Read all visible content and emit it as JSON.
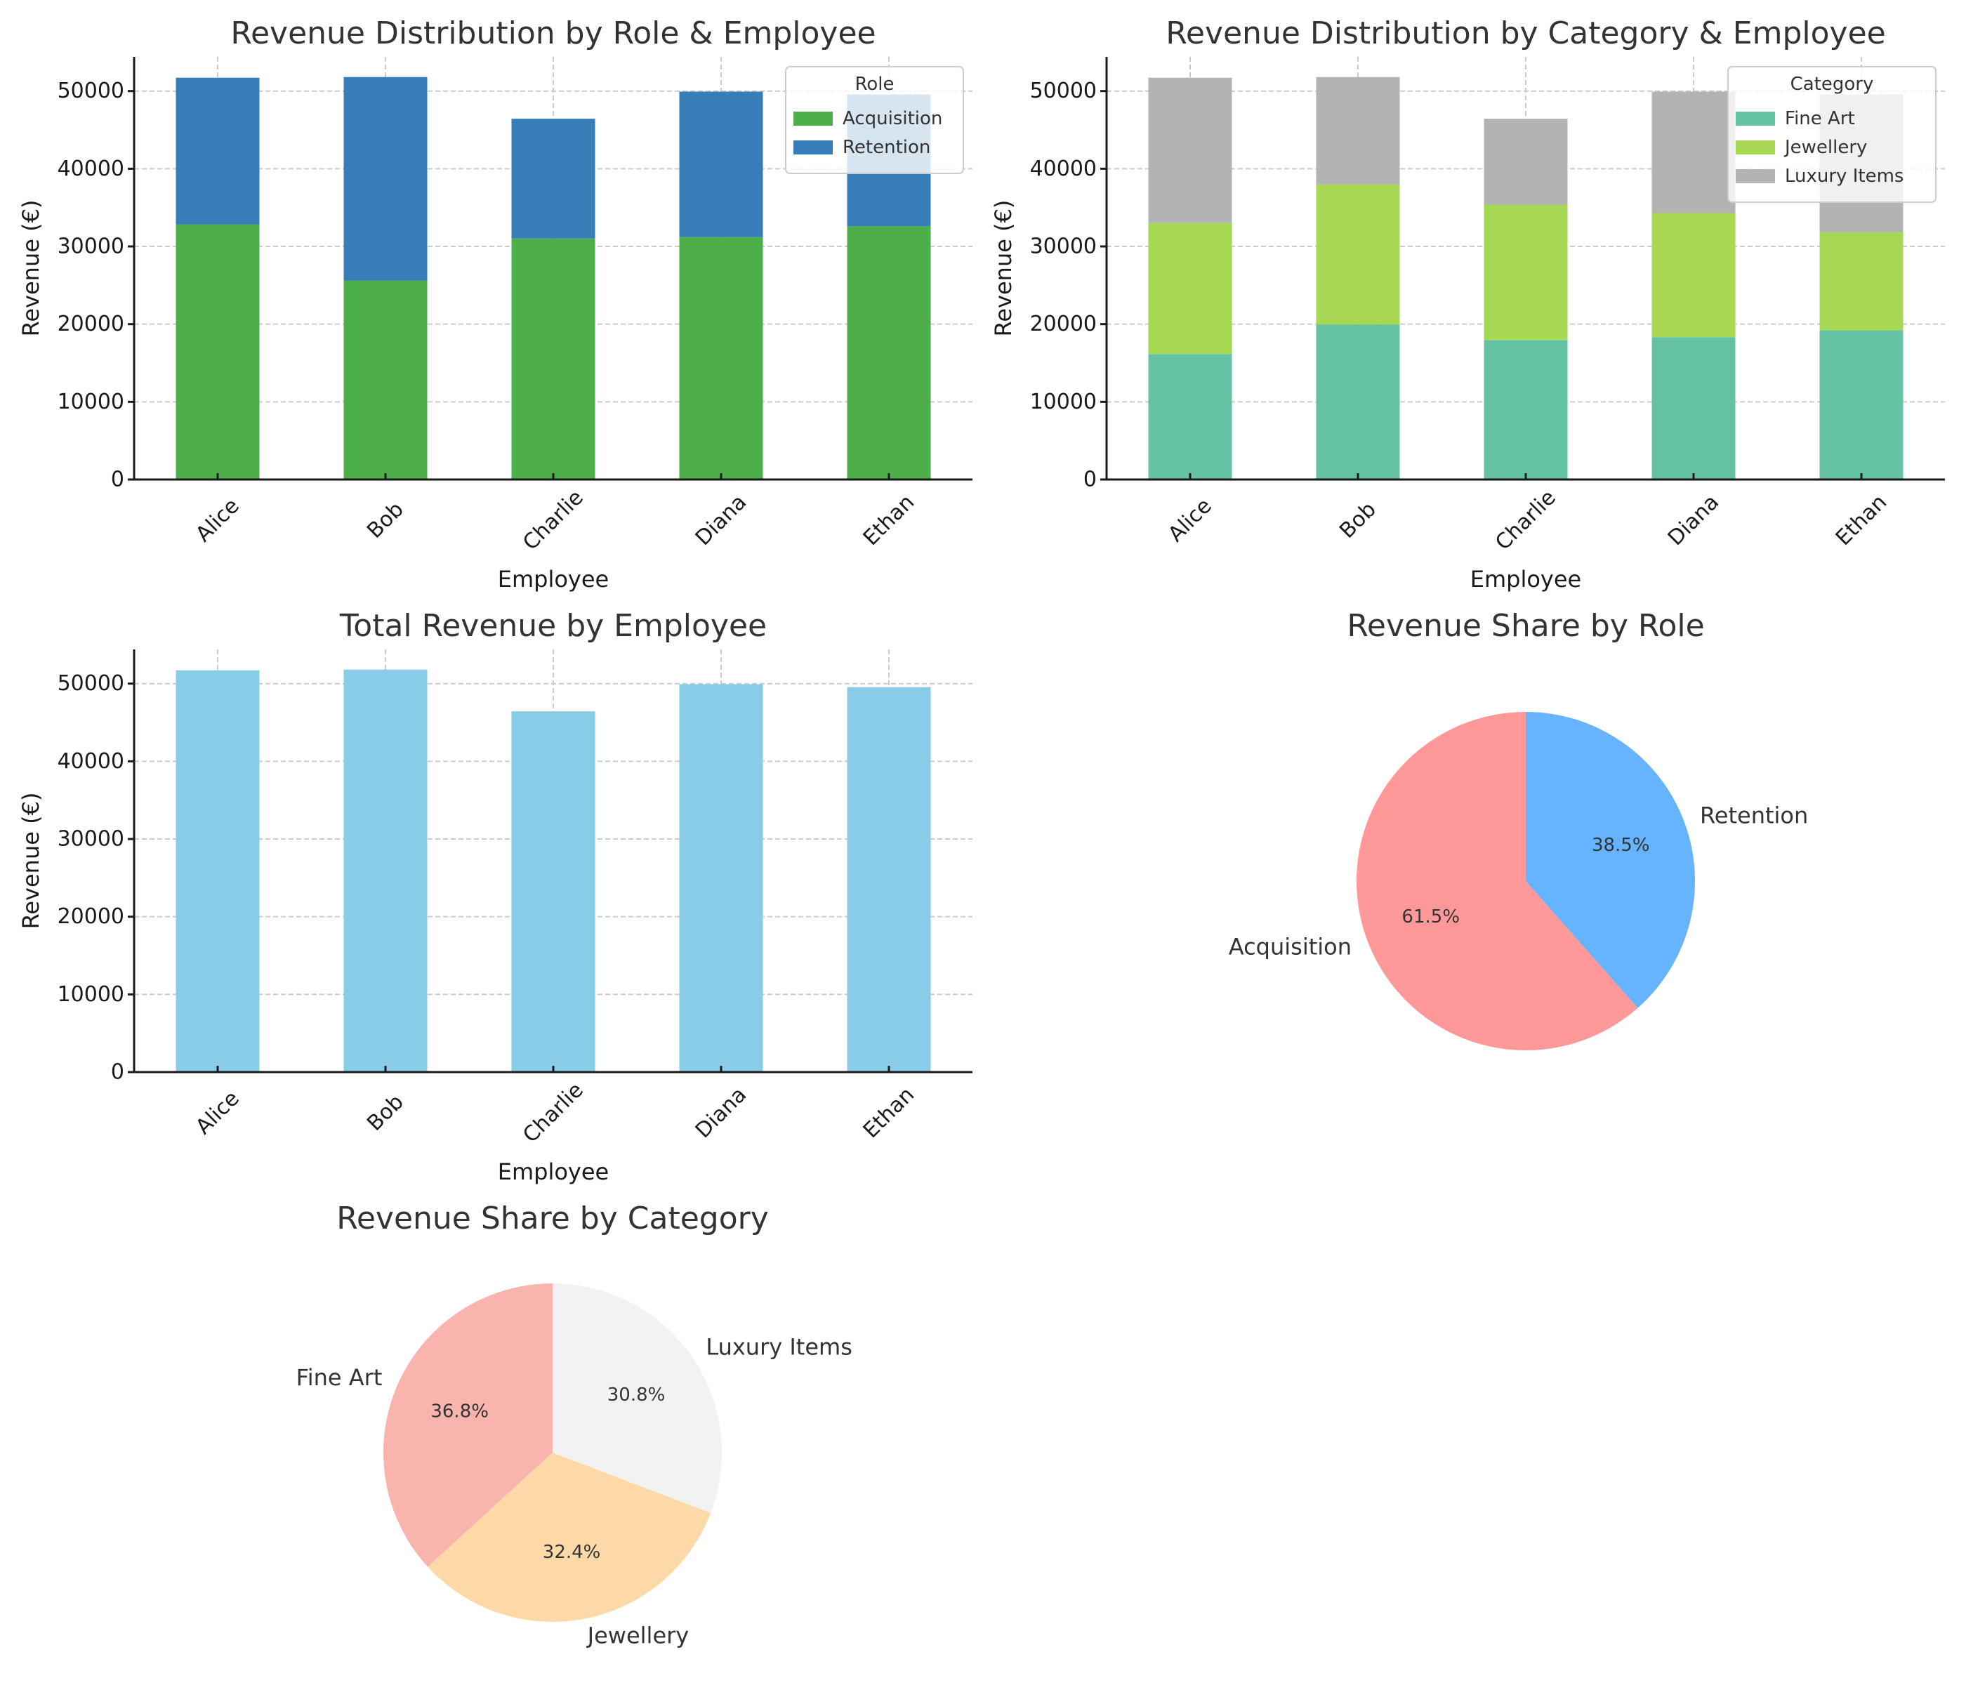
{
  "chart_data": [
    {
      "id": "role_stacked",
      "type": "bar",
      "stacked": true,
      "title": "Revenue Distribution by Role & Employee",
      "xlabel": "Employee",
      "ylabel": "Revenue (€)",
      "categories": [
        "Alice",
        "Bob",
        "Charlie",
        "Diana",
        "Ethan"
      ],
      "series": [
        {
          "name": "Acquisition",
          "color": "#4daf4a",
          "values": [
            32850,
            25620,
            31030,
            31210,
            32600
          ]
        },
        {
          "name": "Retention",
          "color": "#377eb8",
          "values": [
            18865,
            26185,
            15405,
            18718,
            16949
          ]
        }
      ],
      "ylim": [
        0,
        54400
      ],
      "yticks": [
        0,
        10000,
        20000,
        30000,
        40000,
        50000
      ],
      "grid": true,
      "legend": {
        "title": "Role",
        "position": "top-right"
      }
    },
    {
      "id": "category_stacked",
      "type": "bar",
      "stacked": true,
      "title": "Revenue Distribution by Category & Employee",
      "xlabel": "Employee",
      "ylabel": "Revenue (€)",
      "categories": [
        "Alice",
        "Bob",
        "Charlie",
        "Diana",
        "Ethan"
      ],
      "series": [
        {
          "name": "Fine Art",
          "color": "#66c2a5",
          "values": [
            16150,
            19960,
            17960,
            18320,
            19200
          ]
        },
        {
          "name": "Jewellery",
          "color": "#a6d854",
          "values": [
            16870,
            18030,
            17420,
            15970,
            12620
          ]
        },
        {
          "name": "Luxury Items",
          "color": "#b3b3b3",
          "values": [
            18695,
            13815,
            11055,
            15638,
            17729
          ]
        }
      ],
      "ylim": [
        0,
        54400
      ],
      "yticks": [
        0,
        10000,
        20000,
        30000,
        40000,
        50000
      ],
      "grid": true,
      "legend": {
        "title": "Category",
        "position": "top-right"
      }
    },
    {
      "id": "total_bar",
      "type": "bar",
      "title": "Total Revenue by Employee",
      "xlabel": "Employee",
      "ylabel": "Revenue (€)",
      "categories": [
        "Alice",
        "Bob",
        "Charlie",
        "Diana",
        "Ethan"
      ],
      "values": [
        51715,
        51805,
        46435,
        49928,
        49549
      ],
      "color": "#89cce8",
      "ylim": [
        0,
        54400
      ],
      "yticks": [
        0,
        10000,
        20000,
        30000,
        40000,
        50000
      ],
      "grid": true
    },
    {
      "id": "role_pie",
      "type": "pie",
      "title": "Revenue Share by Role",
      "labels": [
        "Acquisition",
        "Retention"
      ],
      "values": [
        61.5,
        38.5
      ],
      "pct_labels": [
        "61.5%",
        "38.5%"
      ],
      "colors": [
        "#ff9999",
        "#66b3ff"
      ],
      "start_angle_deg": 90
    },
    {
      "id": "category_pie",
      "type": "pie",
      "title": "Revenue Share by Category",
      "labels": [
        "Fine Art",
        "Jewellery",
        "Luxury Items"
      ],
      "values": [
        36.8,
        32.4,
        30.8
      ],
      "pct_labels": [
        "36.8%",
        "32.4%",
        "30.8%"
      ],
      "colors": [
        "#f9b4ae",
        "#fdd9a8",
        "#f2f2f2"
      ],
      "start_angle_deg": 90
    }
  ]
}
